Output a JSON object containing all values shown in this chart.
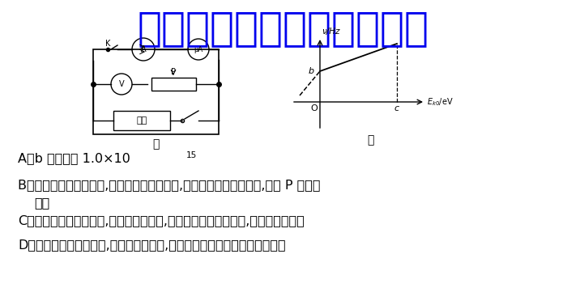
{
  "watermark_text": "微信公众号关注：趣找答案",
  "watermark_color": "#0000ee",
  "watermark_fontsize": 36,
  "bg_color": "#ffffff",
  "label_jia": "甲",
  "label_yi": "乙",
  "option_A": "A．b 的数值为 1.0×10",
  "option_A_sup": "15",
  "option_B1": "B．当电源左端为正极时,若增大人射光的频率,要使电流计的示数为零,滑片 P 应向右",
  "option_B2": "    调节",
  "option_C": "C．当电源右端为正极时,电流计示数为零,则增大该人射光的光强,电流计会有示数",
  "option_D": "D．当电源右端为正极时,若电流计有示数,则流过电流计的电流方向由上到下",
  "text_fontsize": 11.5,
  "col": "#000000"
}
